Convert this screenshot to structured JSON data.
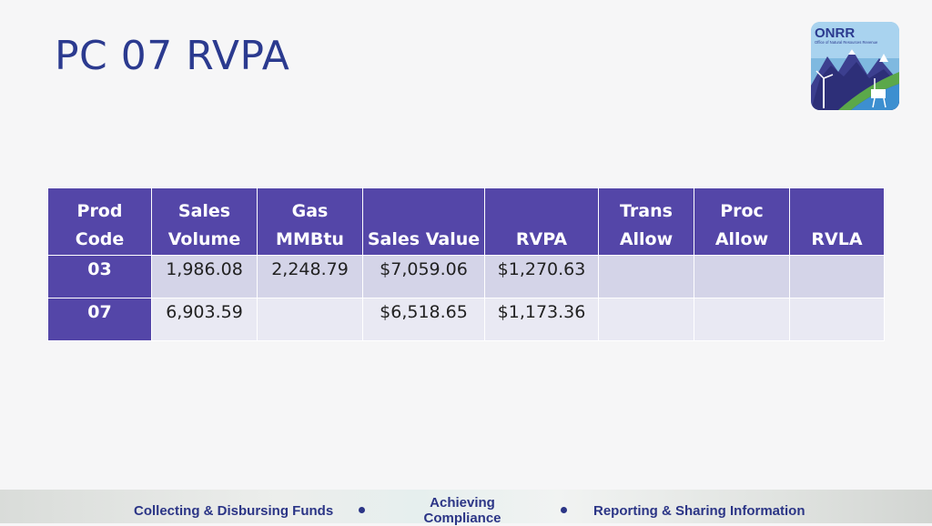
{
  "slide": {
    "title": "PC 07 RVPA"
  },
  "logo": {
    "text": "ONRR",
    "subtitle": "Office of Natural Resources Revenue"
  },
  "table": {
    "headers": [
      [
        "Prod",
        "Code"
      ],
      [
        "Sales",
        "Volume"
      ],
      [
        "Gas",
        "MMBtu"
      ],
      [
        "",
        "Sales Value"
      ],
      [
        "",
        "RVPA"
      ],
      [
        "Trans",
        "Allow"
      ],
      [
        "Proc",
        "Allow"
      ],
      [
        "",
        "RVLA"
      ]
    ],
    "rows": [
      [
        "03",
        "1,986.08",
        "2,248.79",
        "$7,059.06",
        "$1,270.63",
        "",
        "",
        ""
      ],
      [
        "07",
        "6,903.59",
        "",
        "$6,518.65",
        "$1,173.36",
        "",
        "",
        ""
      ]
    ]
  },
  "footer": {
    "items": [
      "Collecting & Disbursing Funds",
      "Achieving Compliance",
      "Reporting & Sharing Information"
    ]
  },
  "colors": {
    "title": "#2b3a8f",
    "header_bg": "#5446a8",
    "row_dark": "#d4d4e8",
    "row_light": "#e9e9f3",
    "footer_text": "#2b3586"
  }
}
